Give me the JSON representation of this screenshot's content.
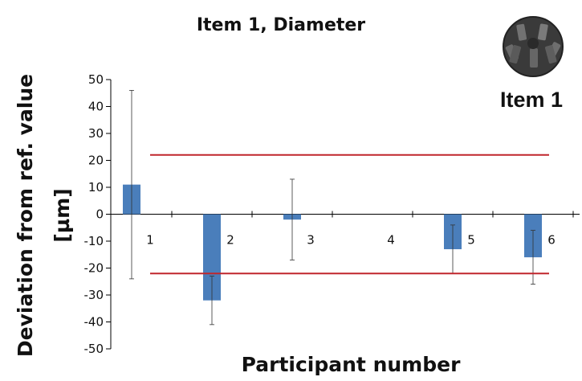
{
  "chart_data": {
    "type": "bar",
    "title": "Item 1, Diameter",
    "xlabel": "Participant number",
    "ylabel_line1": "Deviation from ref. value",
    "ylabel_line2": "[µm]",
    "categories": [
      "1",
      "2",
      "3",
      "4",
      "5",
      "6"
    ],
    "values": [
      11,
      -32,
      -2,
      null,
      -13,
      -16
    ],
    "error_high": [
      46,
      -23,
      13,
      null,
      -4,
      -6
    ],
    "error_low": [
      -24,
      -41,
      -17,
      null,
      -22,
      -26
    ],
    "ylim": [
      -50,
      50
    ],
    "yticks": [
      "50",
      "40",
      "30",
      "20",
      "10",
      "0",
      "-10",
      "-20",
      "-30",
      "-40",
      "-50"
    ],
    "ytick_values": [
      50,
      40,
      30,
      20,
      10,
      0,
      -10,
      -20,
      -30,
      -40,
      -50
    ],
    "limits": [
      22,
      -22
    ],
    "bar_color": "#4a7ebb",
    "limit_color": "#c0262c",
    "grid": false,
    "legend": "none"
  },
  "badge": {
    "label": "Item 1",
    "icon": "gear-part-icon"
  }
}
